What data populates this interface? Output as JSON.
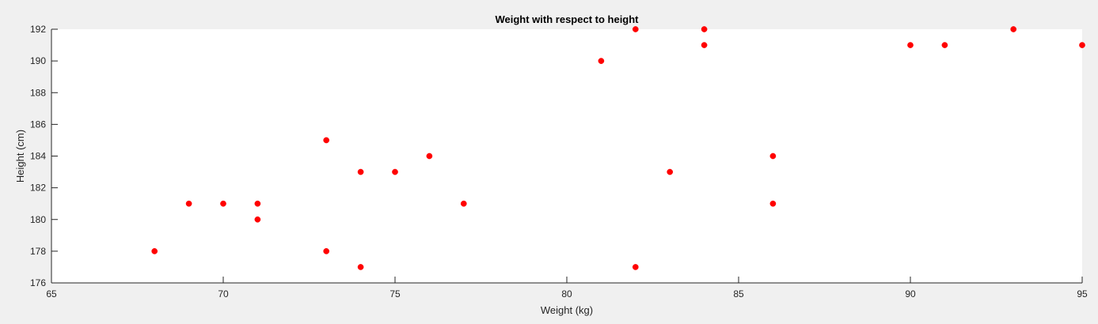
{
  "chart_data": {
    "type": "scatter",
    "title": "Weight with respect to height",
    "xlabel": "Weight (kg)",
    "ylabel": "Height (cm)",
    "xlim": [
      65,
      95
    ],
    "ylim": [
      176,
      192
    ],
    "xticks": [
      65,
      70,
      75,
      80,
      85,
      90,
      95
    ],
    "yticks": [
      176,
      178,
      180,
      182,
      184,
      186,
      188,
      190,
      192
    ],
    "grid": false,
    "legend": "none",
    "marker_color": "#ff0000",
    "series": [
      {
        "points": [
          {
            "x": 68,
            "y": 178
          },
          {
            "x": 69,
            "y": 181
          },
          {
            "x": 70,
            "y": 181
          },
          {
            "x": 71,
            "y": 181
          },
          {
            "x": 71,
            "y": 180
          },
          {
            "x": 73,
            "y": 185
          },
          {
            "x": 73,
            "y": 178
          },
          {
            "x": 74,
            "y": 183
          },
          {
            "x": 74,
            "y": 177
          },
          {
            "x": 75,
            "y": 183
          },
          {
            "x": 76,
            "y": 184
          },
          {
            "x": 77,
            "y": 181
          },
          {
            "x": 81,
            "y": 190
          },
          {
            "x": 82,
            "y": 192
          },
          {
            "x": 82,
            "y": 177
          },
          {
            "x": 83,
            "y": 183
          },
          {
            "x": 84,
            "y": 192
          },
          {
            "x": 84,
            "y": 191
          },
          {
            "x": 86,
            "y": 184
          },
          {
            "x": 86,
            "y": 181
          },
          {
            "x": 90,
            "y": 191
          },
          {
            "x": 91,
            "y": 191
          },
          {
            "x": 93,
            "y": 192
          },
          {
            "x": 95,
            "y": 191
          }
        ]
      }
    ]
  }
}
